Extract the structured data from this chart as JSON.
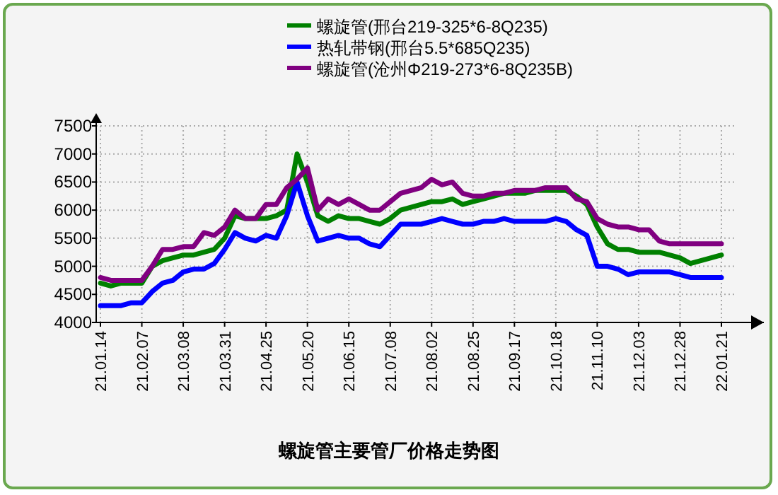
{
  "chart_data": {
    "type": "line",
    "title": "螺旋管主要管厂价格走势图",
    "categories": [
      "21.01.14",
      null,
      null,
      null,
      "21.02.07",
      null,
      null,
      null,
      "21.03.08",
      null,
      null,
      null,
      "21.03.31",
      null,
      null,
      null,
      "21.04.25",
      null,
      null,
      null,
      "21.05.20",
      null,
      null,
      null,
      "21.06.15",
      null,
      null,
      null,
      "21.07.08",
      null,
      null,
      null,
      "21.08.02",
      null,
      null,
      null,
      "21.08.25",
      null,
      null,
      null,
      "21.09.17",
      null,
      null,
      null,
      "21.10.18",
      null,
      null,
      null,
      "21.11.10",
      null,
      null,
      null,
      "21.12.03",
      null,
      null,
      null,
      "21.12.28",
      null,
      null,
      null,
      "22.01.21"
    ],
    "ylim": [
      4000,
      7500
    ],
    "yticks": [
      4000,
      4500,
      5000,
      5500,
      6000,
      6500,
      7000,
      7500
    ],
    "grid": true,
    "legend": "top",
    "marker": "none",
    "line_style": "solid",
    "series": [
      {
        "name": "螺旋管(邢台219-325*6-8Q235)",
        "color": "#008000",
        "values": [
          4700,
          4650,
          4700,
          4700,
          4700,
          5000,
          5100,
          5150,
          5200,
          5200,
          5250,
          5300,
          5500,
          5900,
          5850,
          5850,
          5850,
          5900,
          6000,
          7000,
          6500,
          5900,
          5800,
          5900,
          5850,
          5850,
          5800,
          5750,
          5850,
          6000,
          6050,
          6100,
          6150,
          6150,
          6200,
          6100,
          6150,
          6200,
          6250,
          6300,
          6300,
          6300,
          6350,
          6350,
          6350,
          6350,
          6250,
          6100,
          5700,
          5400,
          5300,
          5300,
          5250,
          5250,
          5250,
          5200,
          5150,
          5050,
          5100,
          5150,
          5200
        ]
      },
      {
        "name": "热轧带钢(邢台5.5*685Q235)",
        "color": "#0000ff",
        "values": [
          4300,
          4300,
          4300,
          4350,
          4350,
          4550,
          4700,
          4750,
          4900,
          4950,
          4950,
          5050,
          5300,
          5600,
          5500,
          5450,
          5550,
          5500,
          5900,
          6500,
          5900,
          5450,
          5500,
          5550,
          5500,
          5500,
          5400,
          5350,
          5550,
          5750,
          5750,
          5750,
          5800,
          5850,
          5800,
          5750,
          5750,
          5800,
          5800,
          5850,
          5800,
          5800,
          5800,
          5800,
          5850,
          5800,
          5650,
          5550,
          5000,
          5000,
          4950,
          4850,
          4900,
          4900,
          4900,
          4900,
          4850,
          4800,
          4800,
          4800,
          4800
        ]
      },
      {
        "name": "螺旋管(沧州Φ219-273*6-8Q235B)",
        "color": "#800080",
        "values": [
          4800,
          4750,
          4750,
          4750,
          4750,
          5000,
          5300,
          5300,
          5350,
          5350,
          5600,
          5550,
          5700,
          6000,
          5850,
          5850,
          6100,
          6100,
          6400,
          6550,
          6750,
          6000,
          6200,
          6100,
          6200,
          6100,
          6000,
          6000,
          6150,
          6300,
          6350,
          6400,
          6550,
          6450,
          6500,
          6300,
          6250,
          6250,
          6300,
          6300,
          6350,
          6350,
          6350,
          6400,
          6400,
          6400,
          6200,
          6150,
          5850,
          5750,
          5700,
          5700,
          5650,
          5650,
          5450,
          5400,
          5400,
          5400,
          5400,
          5400,
          5400
        ]
      }
    ]
  }
}
